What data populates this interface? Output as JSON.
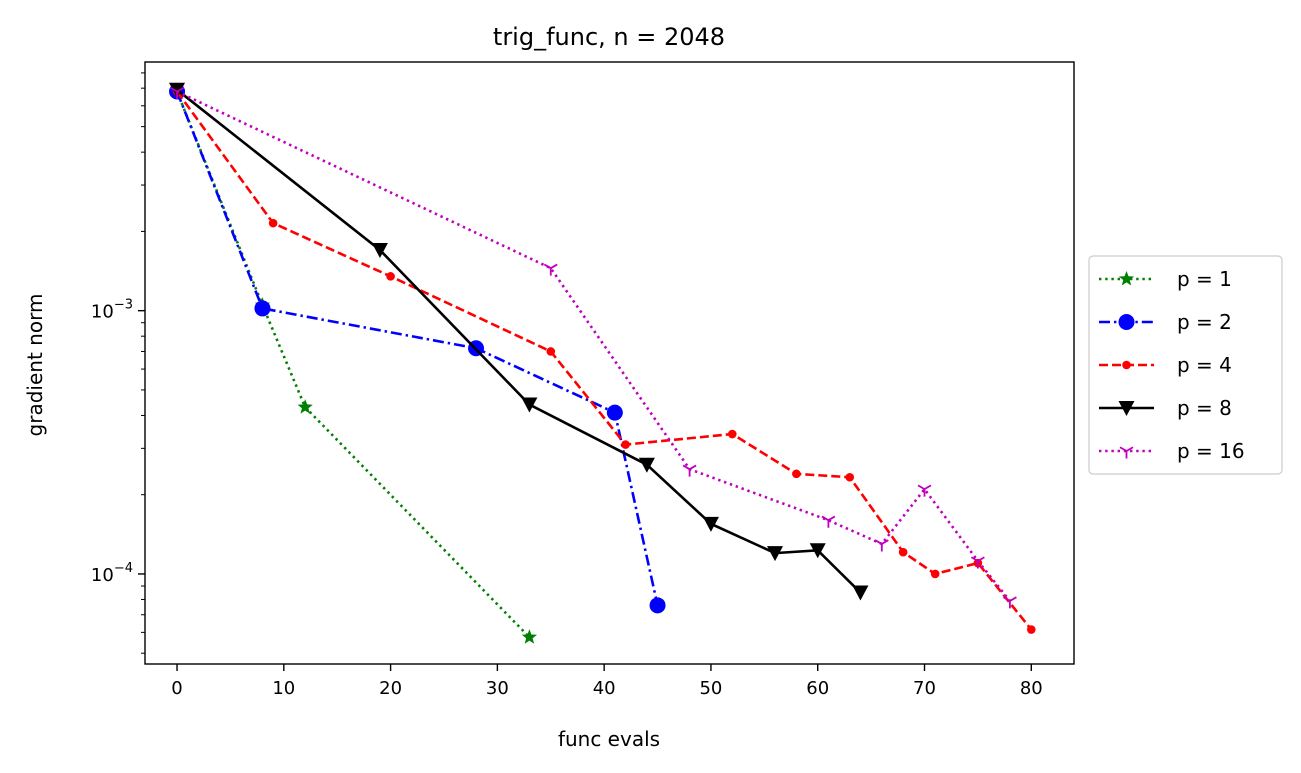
{
  "chart_data": {
    "type": "line",
    "title": "trig_func, n = 2048",
    "xlabel": "func evals",
    "ylabel": "gradient norm",
    "xlim": [
      -3,
      84
    ],
    "ylim": [
      4.55e-05,
      0.0088
    ],
    "yscale": "log",
    "grid": false,
    "legend_position": "outside-right",
    "x_ticks": [
      0,
      10,
      20,
      30,
      40,
      50,
      60,
      70,
      80
    ],
    "x_tick_labels": [
      "0",
      "10",
      "20",
      "30",
      "40",
      "50",
      "60",
      "70",
      "80"
    ],
    "y_ticks": [
      0.0001,
      0.001
    ],
    "y_tick_labels": [
      {
        "base": "10",
        "exp": "−4"
      },
      {
        "base": "10",
        "exp": "−3"
      }
    ],
    "series": [
      {
        "name": "p = 1",
        "color": "#008000",
        "dash": "dotted",
        "marker": "star",
        "x": [
          0,
          8,
          12,
          33
        ],
        "y": [
          0.0068,
          0.00105,
          0.00043,
          5.75e-05
        ]
      },
      {
        "name": "p = 2",
        "color": "#0000ff",
        "dash": "dashdot",
        "marker": "circle",
        "x": [
          0,
          8,
          28,
          41,
          45
        ],
        "y": [
          0.0068,
          0.00102,
          0.00072,
          0.00041,
          7.6e-05
        ]
      },
      {
        "name": "p = 4",
        "color": "#ff0000",
        "dash": "dashed",
        "marker": "point",
        "x": [
          0,
          9,
          20,
          35,
          42,
          52,
          58,
          63,
          68,
          71,
          75,
          80
        ],
        "y": [
          0.0068,
          0.00215,
          0.00135,
          0.0007,
          0.00031,
          0.00034,
          0.00024,
          0.000233,
          0.000121,
          0.0001,
          0.00011,
          6.15e-05
        ]
      },
      {
        "name": "p = 8",
        "color": "#000000",
        "dash": "solid",
        "marker": "triangle-down",
        "x": [
          0,
          19,
          33,
          44,
          50,
          56,
          60,
          64
        ],
        "y": [
          0.0069,
          0.0017,
          0.00044,
          0.00026,
          0.000155,
          0.00012,
          0.000123,
          8.5e-05
        ]
      },
      {
        "name": "p = 16",
        "color": "#bf00bf",
        "dash": "dotted",
        "marker": "tri-down",
        "x": [
          0,
          35,
          48,
          61,
          66,
          70,
          75,
          78
        ],
        "y": [
          0.0068,
          0.00145,
          0.00025,
          0.00016,
          0.00013,
          0.00021,
          0.000112,
          7.9e-05
        ]
      }
    ]
  }
}
